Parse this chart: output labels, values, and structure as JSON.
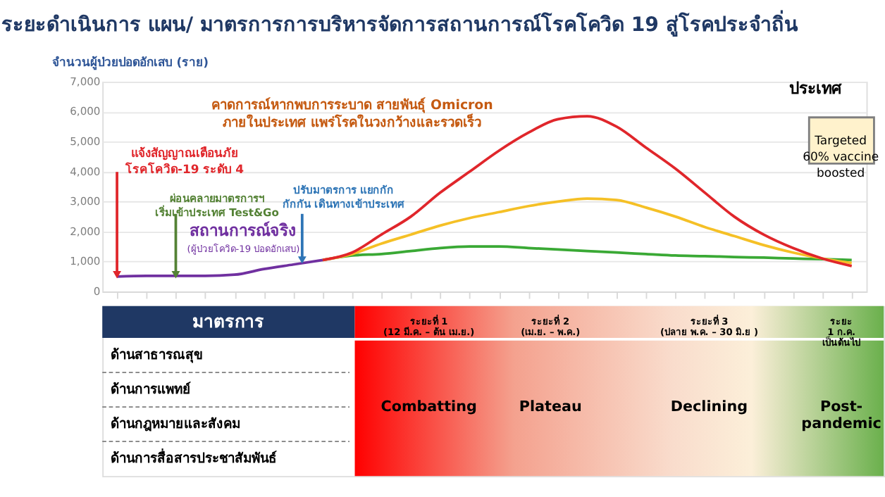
{
  "chart_data": [
    {
      "type": "line",
      "title": "ระยะดำเนินการ แผน/ มาตรการการบริหารจัดการสถานการณ์โรคโควิด 19 สู่โรคประจำถิ่น",
      "ylabel": "จำนวนผู้ป่วยปอดอักเสบ (ราย)",
      "categories": [
        null,
        null,
        null,
        null,
        null,
        null,
        null,
        null,
        null,
        null,
        null,
        null,
        null,
        null,
        null,
        null,
        null,
        null,
        null,
        null,
        null,
        null,
        null,
        null,
        null,
        null
      ],
      "series": [
        {
          "color": "#7030a0",
          "values": [
            500,
            520,
            520,
            520,
            560,
            750,
            900,
            1050,
            null,
            null,
            null,
            null,
            null,
            null,
            null,
            null,
            null,
            null,
            null,
            null,
            null,
            null,
            null,
            null,
            null,
            null
          ]
        },
        {
          "color": "#3aa935",
          "values": [
            null,
            null,
            null,
            null,
            null,
            null,
            null,
            1050,
            1200,
            1250,
            1350,
            1450,
            1500,
            1500,
            1450,
            1400,
            1350,
            1300,
            1250,
            1200,
            1180,
            1150,
            1130,
            1100,
            1080,
            1050
          ]
        },
        {
          "color": "#f5c026",
          "values": [
            null,
            null,
            null,
            null,
            null,
            null,
            null,
            1050,
            1250,
            1600,
            1900,
            2200,
            2450,
            2650,
            2850,
            3000,
            3100,
            3050,
            2800,
            2500,
            2150,
            1850,
            1550,
            1300,
            1100,
            950
          ]
        },
        {
          "color": "#e0262b",
          "values": [
            null,
            null,
            null,
            null,
            null,
            null,
            null,
            1050,
            1300,
            1900,
            2500,
            3300,
            4000,
            4700,
            5300,
            5750,
            5850,
            5500,
            4800,
            4100,
            3300,
            2500,
            1900,
            1450,
            1100,
            850
          ]
        }
      ],
      "ylim": [
        0,
        7000
      ],
      "yticks": [
        {
          "value": 0,
          "label": "0"
        },
        {
          "value": 1000,
          "label": "1,000"
        },
        {
          "value": 2000,
          "label": "2,000"
        },
        {
          "value": 3000,
          "label": "3,000"
        },
        {
          "value": 4000,
          "label": "4,000"
        },
        {
          "value": 5000,
          "label": "5,000"
        },
        {
          "value": 6000,
          "label": "6,000"
        },
        {
          "value": 7000,
          "label": "7,000"
        }
      ],
      "grid": "y",
      "tick_labels": "y",
      "annotations": [
        "คาดการณ์หากพบการระบาด สายพันธุ์ Omicron\nภายในประเทศ แพร่โรคในวงกว้างและรวดเร็ว",
        "แจ้งสัญญาณเตือนภัย\nโรคโควิด-19 ระดับ 4",
        "ผ่อนคลายมาตรการฯ\nเริ่มเข้าประเทศ Test&Go",
        "ปรับมาตรการ แยกกัก\nกักกัน เดินทางเข้าประเทศ",
        "สถานการณ์จริง",
        "(ผู้ป่วยโควิด-19 ปอดอักเสบ)",
        "ประเทศ",
        "Targeted\n60% vaccine\nboosted"
      ]
    },
    {
      "type": "other",
      "title": "มาตรการ",
      "categories": [
        "ระยะที่ 1\n(12 มี.ค. – ต้น เม.ย.)",
        "ระยะที่ 2\n(เม.ย. – พ.ค.)",
        "ระยะที่ 3\n(ปลาย พ.ค. – 30 มิ.ย )",
        "ระยะ\n1 ก.ค.\nเป็นต้นไป"
      ],
      "y_categories": [
        "ด้านสาธารณสุข",
        "ด้านการแพทย์",
        "ด้านกฎหมายและสังคม",
        "ด้านการสื่อสารประชาสัมพันธ์"
      ],
      "annotations": [
        "Combatting",
        "Plateau",
        "Declining",
        "Post-\npandemic"
      ]
    }
  ]
}
